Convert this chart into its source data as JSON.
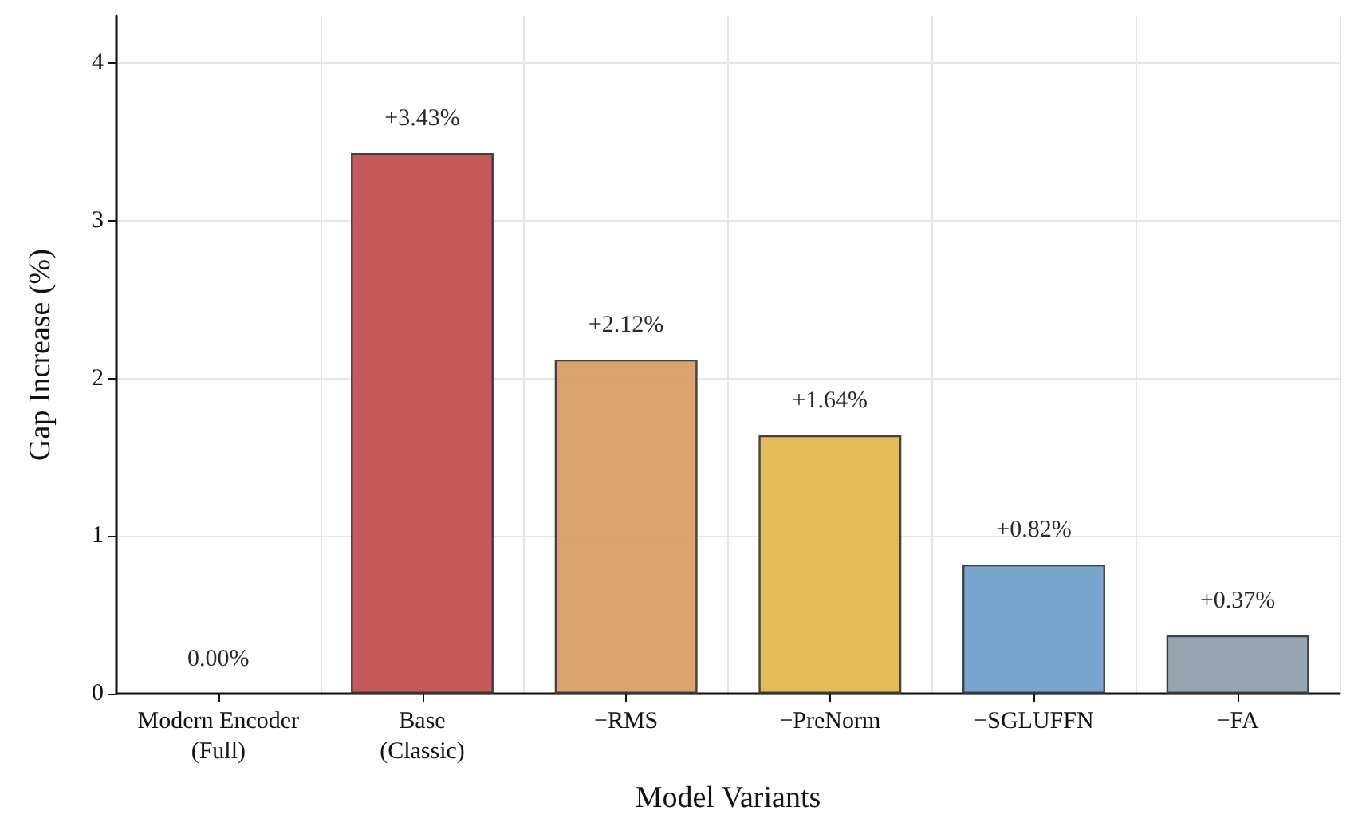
{
  "chart_data": {
    "type": "bar",
    "xlabel": "Model Variants",
    "ylabel": "Gap Increase (%)",
    "categories": [
      "Modern Encoder\n(Full)",
      "Base\n(Classic)",
      "−RMS",
      "−PreNorm",
      "−SGLUFFN",
      "−FA"
    ],
    "values": [
      0.0,
      3.43,
      2.12,
      1.64,
      0.82,
      0.37
    ],
    "colors": [
      "#c0c0c0",
      "#c0474a",
      "#d69a62",
      "#e0b548",
      "#6a9cc6",
      "#8c9aa8"
    ],
    "value_labels": [
      "0.00%",
      "+3.43%",
      "+2.12%",
      "+1.64%",
      "+0.82%",
      "+0.37%"
    ],
    "ylim": [
      0,
      4.3
    ],
    "yticks": [
      0,
      1,
      2,
      3,
      4
    ],
    "grid": true
  }
}
